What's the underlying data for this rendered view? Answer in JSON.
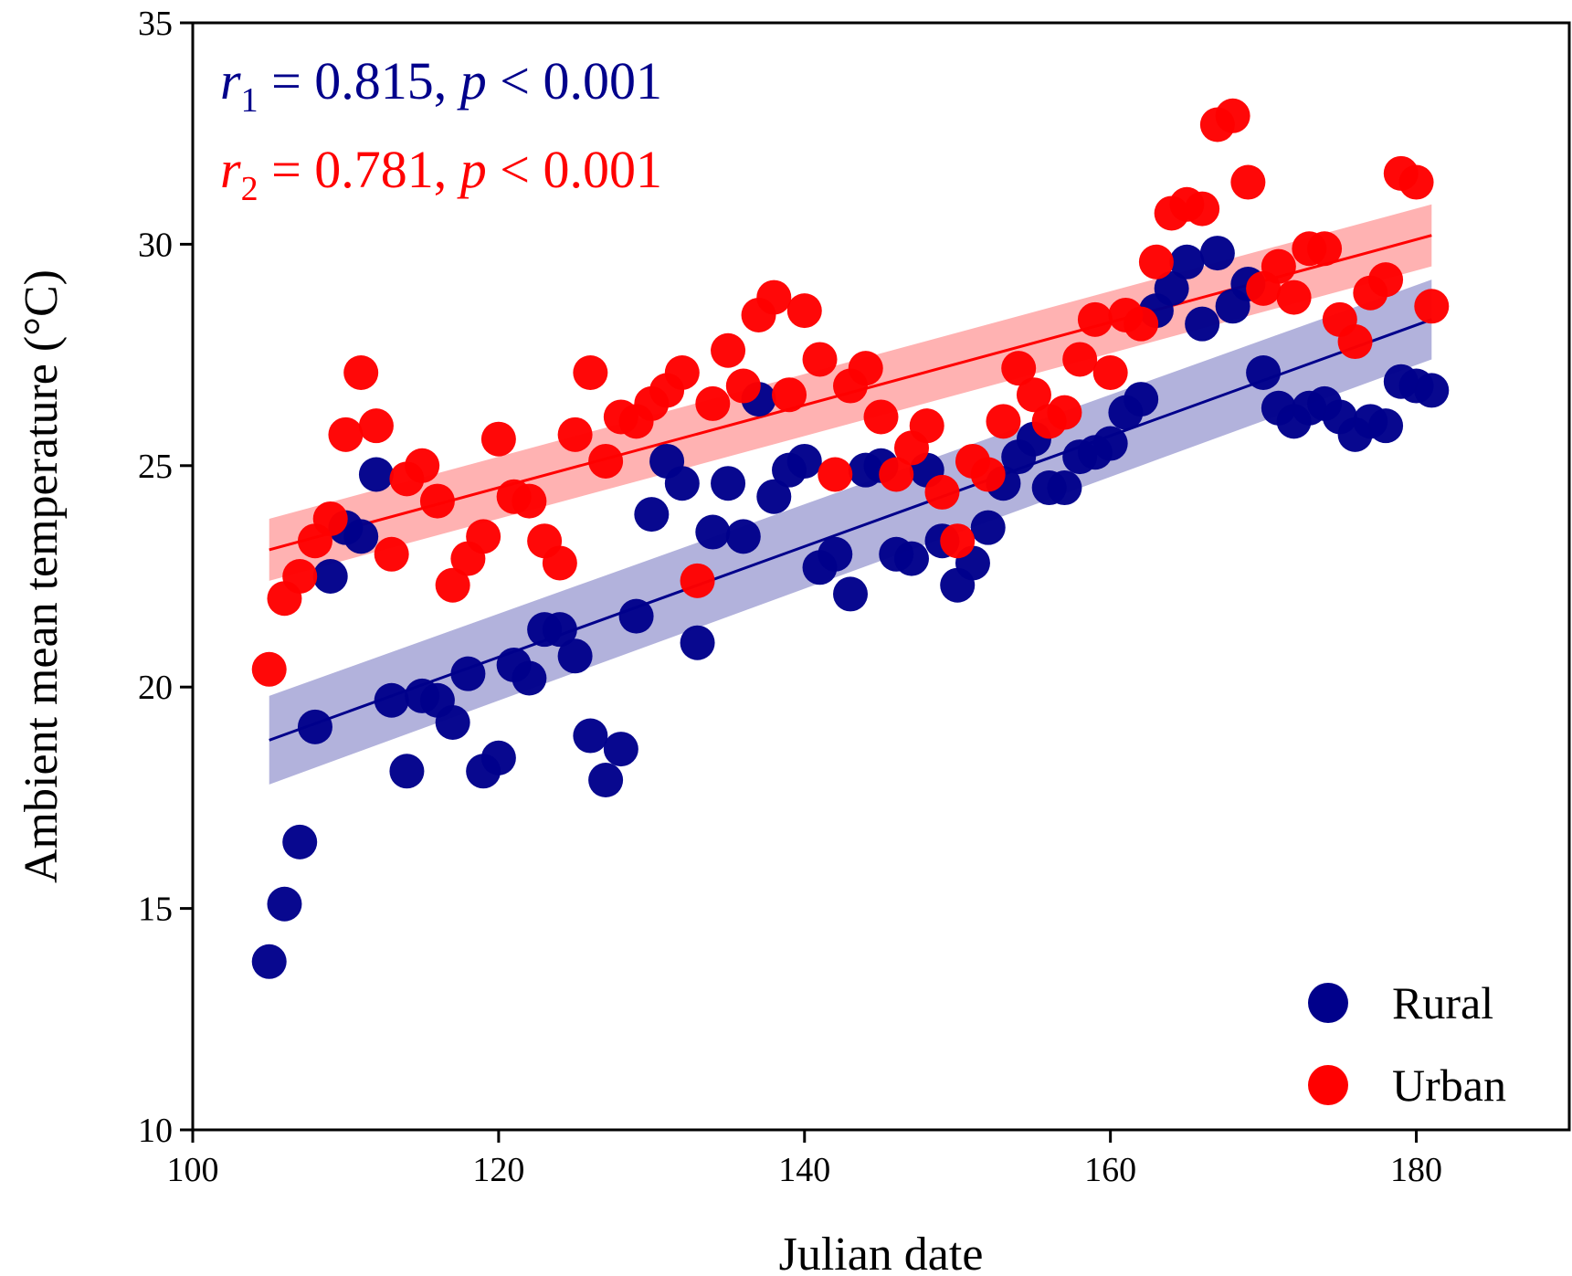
{
  "chart_data": {
    "type": "scatter",
    "xlabel": "Julian date",
    "ylabel": "Ambient mean temperature (°C)",
    "xlim": [
      100,
      190
    ],
    "ylim": [
      10,
      35
    ],
    "xticks": [
      100,
      120,
      140,
      160,
      180
    ],
    "yticks": [
      10,
      15,
      20,
      25,
      30,
      35
    ],
    "legend_position": "bottom-right",
    "annotations": [
      {
        "var": "r",
        "sub": "1",
        "text": " = 0.815, ",
        "pvar": "p",
        "ptext": " < 0.001",
        "color": "#00008b"
      },
      {
        "var": "r",
        "sub": "2",
        "text": " = 0.781, ",
        "pvar": "p",
        "ptext": " < 0.001",
        "color": "#ff0000"
      }
    ],
    "series": [
      {
        "name": "Rural",
        "color": "#00008b",
        "fit": {
          "x": [
            105,
            181
          ],
          "y": [
            18.8,
            28.3
          ],
          "band": [
            1.0,
            0.9
          ]
        },
        "x": [
          105,
          106,
          107,
          108,
          109,
          110,
          111,
          112,
          113,
          114,
          115,
          116,
          117,
          118,
          119,
          120,
          121,
          122,
          123,
          124,
          125,
          126,
          127,
          128,
          129,
          130,
          131,
          132,
          133,
          134,
          135,
          136,
          137,
          138,
          139,
          140,
          141,
          142,
          143,
          144,
          145,
          146,
          147,
          148,
          149,
          150,
          151,
          152,
          153,
          154,
          155,
          156,
          157,
          158,
          159,
          160,
          161,
          162,
          163,
          164,
          165,
          166,
          167,
          168,
          169,
          170,
          171,
          172,
          173,
          174,
          175,
          176,
          177,
          178,
          179,
          180,
          181
        ],
        "y": [
          13.8,
          15.1,
          16.5,
          19.1,
          22.5,
          23.6,
          23.4,
          24.8,
          19.7,
          18.1,
          19.8,
          19.7,
          19.2,
          20.3,
          18.1,
          18.4,
          20.5,
          20.2,
          21.3,
          21.3,
          20.7,
          18.9,
          17.9,
          18.6,
          21.6,
          23.9,
          25.1,
          24.6,
          21.0,
          23.5,
          24.6,
          23.4,
          26.5,
          24.3,
          24.9,
          25.1,
          22.7,
          23.0,
          22.1,
          24.9,
          25.0,
          23.0,
          22.9,
          24.9,
          23.3,
          22.3,
          22.8,
          23.6,
          24.6,
          25.2,
          25.6,
          24.5,
          24.5,
          25.2,
          25.3,
          25.5,
          26.2,
          26.5,
          28.5,
          29.0,
          29.6,
          28.2,
          29.8,
          28.6,
          29.1,
          27.1,
          26.3,
          26.0,
          26.3,
          26.4,
          26.1,
          25.7,
          26.0,
          25.9,
          26.9,
          26.8,
          26.7
        ]
      },
      {
        "name": "Urban",
        "color": "#ff0000",
        "fit": {
          "x": [
            105,
            181
          ],
          "y": [
            23.1,
            30.2
          ],
          "band": [
            0.7,
            0.7
          ]
        },
        "x": [
          105,
          106,
          107,
          108,
          109,
          110,
          111,
          112,
          113,
          114,
          115,
          116,
          117,
          118,
          119,
          120,
          121,
          122,
          123,
          124,
          125,
          126,
          127,
          128,
          129,
          130,
          131,
          132,
          133,
          134,
          135,
          136,
          137,
          138,
          139,
          140,
          141,
          142,
          143,
          144,
          145,
          146,
          147,
          148,
          149,
          150,
          151,
          152,
          153,
          154,
          155,
          156,
          157,
          158,
          159,
          160,
          161,
          162,
          163,
          164,
          165,
          166,
          167,
          168,
          169,
          170,
          171,
          172,
          173,
          174,
          175,
          176,
          177,
          178,
          179,
          180,
          181
        ],
        "y": [
          20.4,
          22.0,
          22.5,
          23.3,
          23.8,
          25.7,
          27.1,
          25.9,
          23.0,
          24.7,
          25.0,
          24.2,
          22.3,
          22.9,
          23.4,
          25.6,
          24.3,
          24.2,
          23.3,
          22.8,
          25.7,
          27.1,
          25.1,
          26.1,
          26.0,
          26.4,
          26.7,
          27.1,
          22.4,
          26.4,
          27.6,
          26.8,
          28.4,
          28.8,
          26.6,
          28.5,
          27.4,
          24.8,
          26.8,
          27.2,
          26.1,
          24.8,
          25.4,
          25.9,
          24.4,
          23.3,
          25.1,
          24.8,
          26.0,
          27.2,
          26.6,
          26.0,
          26.2,
          27.4,
          28.3,
          27.1,
          28.4,
          28.2,
          29.6,
          30.7,
          30.9,
          30.8,
          32.7,
          32.9,
          31.4,
          29.0,
          29.5,
          28.8,
          29.9,
          29.9,
          28.3,
          27.8,
          28.9,
          29.2,
          31.6,
          31.4,
          28.6
        ]
      }
    ]
  }
}
